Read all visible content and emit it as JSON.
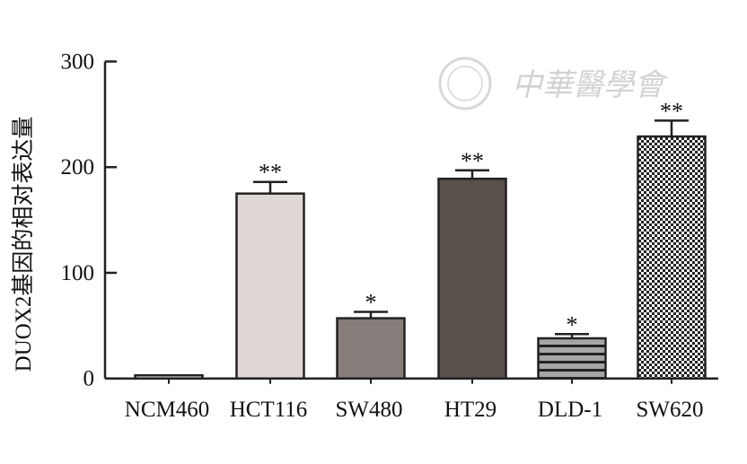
{
  "chart_data": {
    "type": "bar",
    "title": "",
    "xlabel": "",
    "ylabel": "DUOX2基因的相对表达量",
    "ylim": [
      0,
      300
    ],
    "yticks": [
      0,
      100,
      200,
      300
    ],
    "grid": false,
    "categories": [
      "NCM460",
      "HCT116",
      "SW480",
      "HT29",
      "DLD-1",
      "SW620"
    ],
    "values": [
      3,
      175,
      57,
      189,
      38,
      229
    ],
    "error_upper": [
      3,
      186,
      63,
      197,
      42,
      244
    ],
    "significance": [
      "",
      "**",
      "*",
      "**",
      "*",
      "**"
    ],
    "fills": [
      "solid #e0d8d6",
      "solid #e0d8d6",
      "solid #877e7b",
      "solid #5a504c",
      "horizontal stripes #9a9a9a/#222",
      "checkerboard #222/#fff"
    ]
  },
  "watermark": {
    "text": "中華醫學會"
  }
}
